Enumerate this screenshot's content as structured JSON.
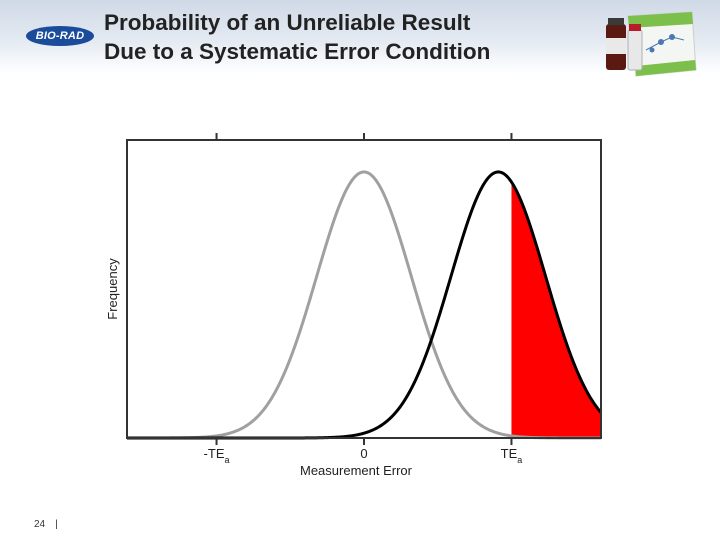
{
  "header": {
    "logo_text": "BIO-RAD",
    "title_line1": "Probability of an Unreliable Result",
    "title_line2": "Due to a Systematic Error Condition"
  },
  "footer": {
    "page_number": "24",
    "separator": "|"
  },
  "colors": {
    "in_control_curve": "#a0a0a0",
    "shifted_curve": "#000000",
    "rejection_area": "#ff0000",
    "brand_blue": "#1b4b9b"
  },
  "chart_data": {
    "type": "area",
    "title": "",
    "xlabel": "Measurement Error",
    "ylabel": "Frequency",
    "xlim": [
      -4.5,
      4.5
    ],
    "ylim": [
      0,
      1.12
    ],
    "x_ticks": [
      {
        "value": -2.8,
        "label": "-TE",
        "sub": "a"
      },
      {
        "value": 0,
        "label": "0",
        "sub": ""
      },
      {
        "value": 2.8,
        "label": "TE",
        "sub": "a"
      }
    ],
    "series": [
      {
        "mean": 0,
        "sd": 0.9,
        "color": "#a0a0a0"
      },
      {
        "mean": 2.55,
        "sd": 0.9,
        "color": "#000000"
      }
    ],
    "shaded_region": {
      "series_index": 1,
      "from": 2.8,
      "to": 4.5,
      "color": "#ff0000"
    },
    "grid": false
  }
}
